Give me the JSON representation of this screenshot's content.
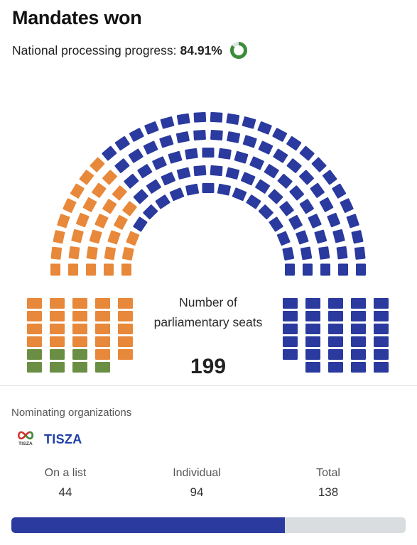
{
  "header": {
    "title": "Mandates won",
    "progress_label": "National processing progress:",
    "progress_value": "84.91%",
    "progress_fraction": 0.8491
  },
  "chart_data": {
    "type": "parliament",
    "total_seats": 199,
    "center_label": "Number of parliamentary seats",
    "center_value": "199",
    "colors": {
      "blue": "#2a3a9e",
      "orange": "#e8883a",
      "green": "#6b8e45"
    }
  },
  "organizations": {
    "heading": "Nominating organizations",
    "party": {
      "logo_text": "TISZA",
      "name": "TISZA",
      "on_list_label": "On a list",
      "on_list_value": "44",
      "individual_label": "Individual",
      "individual_value": "94",
      "total_label": "Total",
      "total_value": "138",
      "seat_share": 0.6935
    }
  }
}
